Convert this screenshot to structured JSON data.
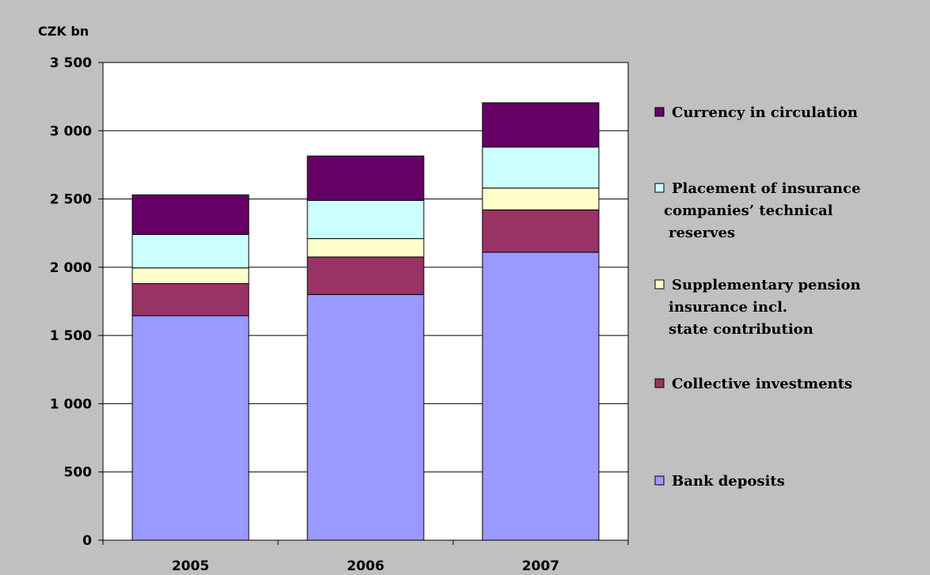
{
  "chart_data": {
    "type": "bar",
    "stacked": true,
    "ylabel": "CZK bn",
    "categories": [
      "2005",
      "2006",
      "2007"
    ],
    "ylim": [
      0,
      3500
    ],
    "yticks": [
      0,
      500,
      1000,
      1500,
      2000,
      2500,
      3000,
      3500
    ],
    "ytick_labels": [
      "0",
      "500",
      "1 000",
      "1 500",
      "2 000",
      "2 500",
      "3 000",
      "3 500"
    ],
    "grid": true,
    "legend_position": "right",
    "series": [
      {
        "name": "Bank deposits",
        "color": "#9999ff",
        "values": [
          1645,
          1800,
          2110
        ]
      },
      {
        "name": "Collective investments",
        "color": "#993366",
        "values": [
          235,
          275,
          310
        ]
      },
      {
        "name": "Supplementary pension insurance incl. state contribution",
        "color": "#ffffcc",
        "values": [
          115,
          135,
          160
        ]
      },
      {
        "name": "Placement of insurance companies’ technical reserves",
        "color": "#ccffff",
        "values": [
          245,
          280,
          300
        ]
      },
      {
        "name": "Currency in circulation",
        "color": "#660066",
        "values": [
          290,
          325,
          325
        ]
      }
    ],
    "legend_order": [
      4,
      3,
      2,
      1,
      0
    ]
  },
  "legend_lines": [
    [
      "Currency in circulation"
    ],
    [
      "Placement of insurance",
      "companies’ technical",
      "reserves"
    ],
    [
      "Supplementary pension",
      "insurance incl.",
      "state contribution"
    ],
    [
      "Collective investments"
    ],
    [
      "Bank deposits"
    ]
  ]
}
